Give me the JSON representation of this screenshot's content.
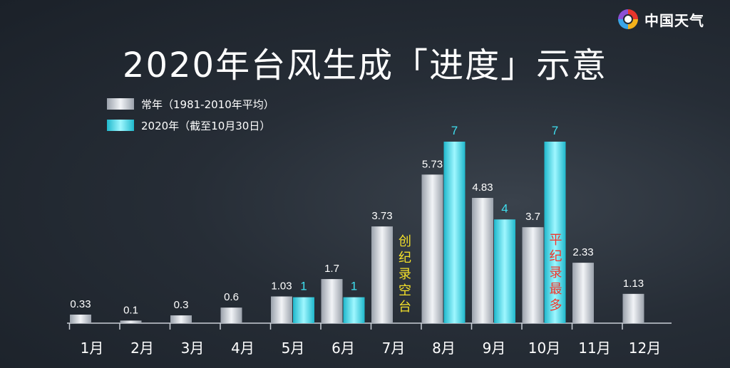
{
  "brand": {
    "name": "中国天气",
    "logo_icon": "china-weather-logo-icon"
  },
  "colors": {
    "normal": "#cfd3da",
    "actual": "#3fdff0",
    "value_normal": "#ffffff",
    "value_actual": "#3fdff0",
    "note_low": "#f3e02a",
    "note_high": "#f0372c"
  },
  "chart_data": {
    "type": "bar",
    "title": "2020年台风生成「进度」示意",
    "categories": [
      "1月",
      "2月",
      "3月",
      "4月",
      "5月",
      "6月",
      "7月",
      "8月",
      "9月",
      "10月",
      "11月",
      "12月"
    ],
    "series": [
      {
        "name": "常年（1981-2010年平均）",
        "values": [
          0.33,
          0.1,
          0.3,
          0.6,
          1.03,
          1.7,
          3.73,
          5.73,
          4.83,
          3.7,
          2.33,
          1.13
        ]
      },
      {
        "name": "2020年（截至10月30日）",
        "values": [
          null,
          null,
          null,
          null,
          1,
          1,
          null,
          7,
          4,
          7,
          null,
          null
        ]
      }
    ],
    "normal_labels": [
      "0.33",
      "0.1",
      "0.3",
      "0.6",
      "1.03",
      "1.7",
      "3.73",
      "5.73",
      "4.83",
      "3.7",
      "2.33",
      "1.13"
    ],
    "actual_labels": [
      "",
      "",
      "",
      "",
      "1",
      "1",
      "",
      "7",
      "4",
      "7",
      "",
      ""
    ],
    "ylim": [
      0,
      7
    ],
    "annotations": [
      {
        "category": "7月",
        "text": "创纪录空台"
      },
      {
        "category": "10月",
        "text": "平纪录最多"
      }
    ],
    "legend_position": "top-left",
    "grid": false
  }
}
